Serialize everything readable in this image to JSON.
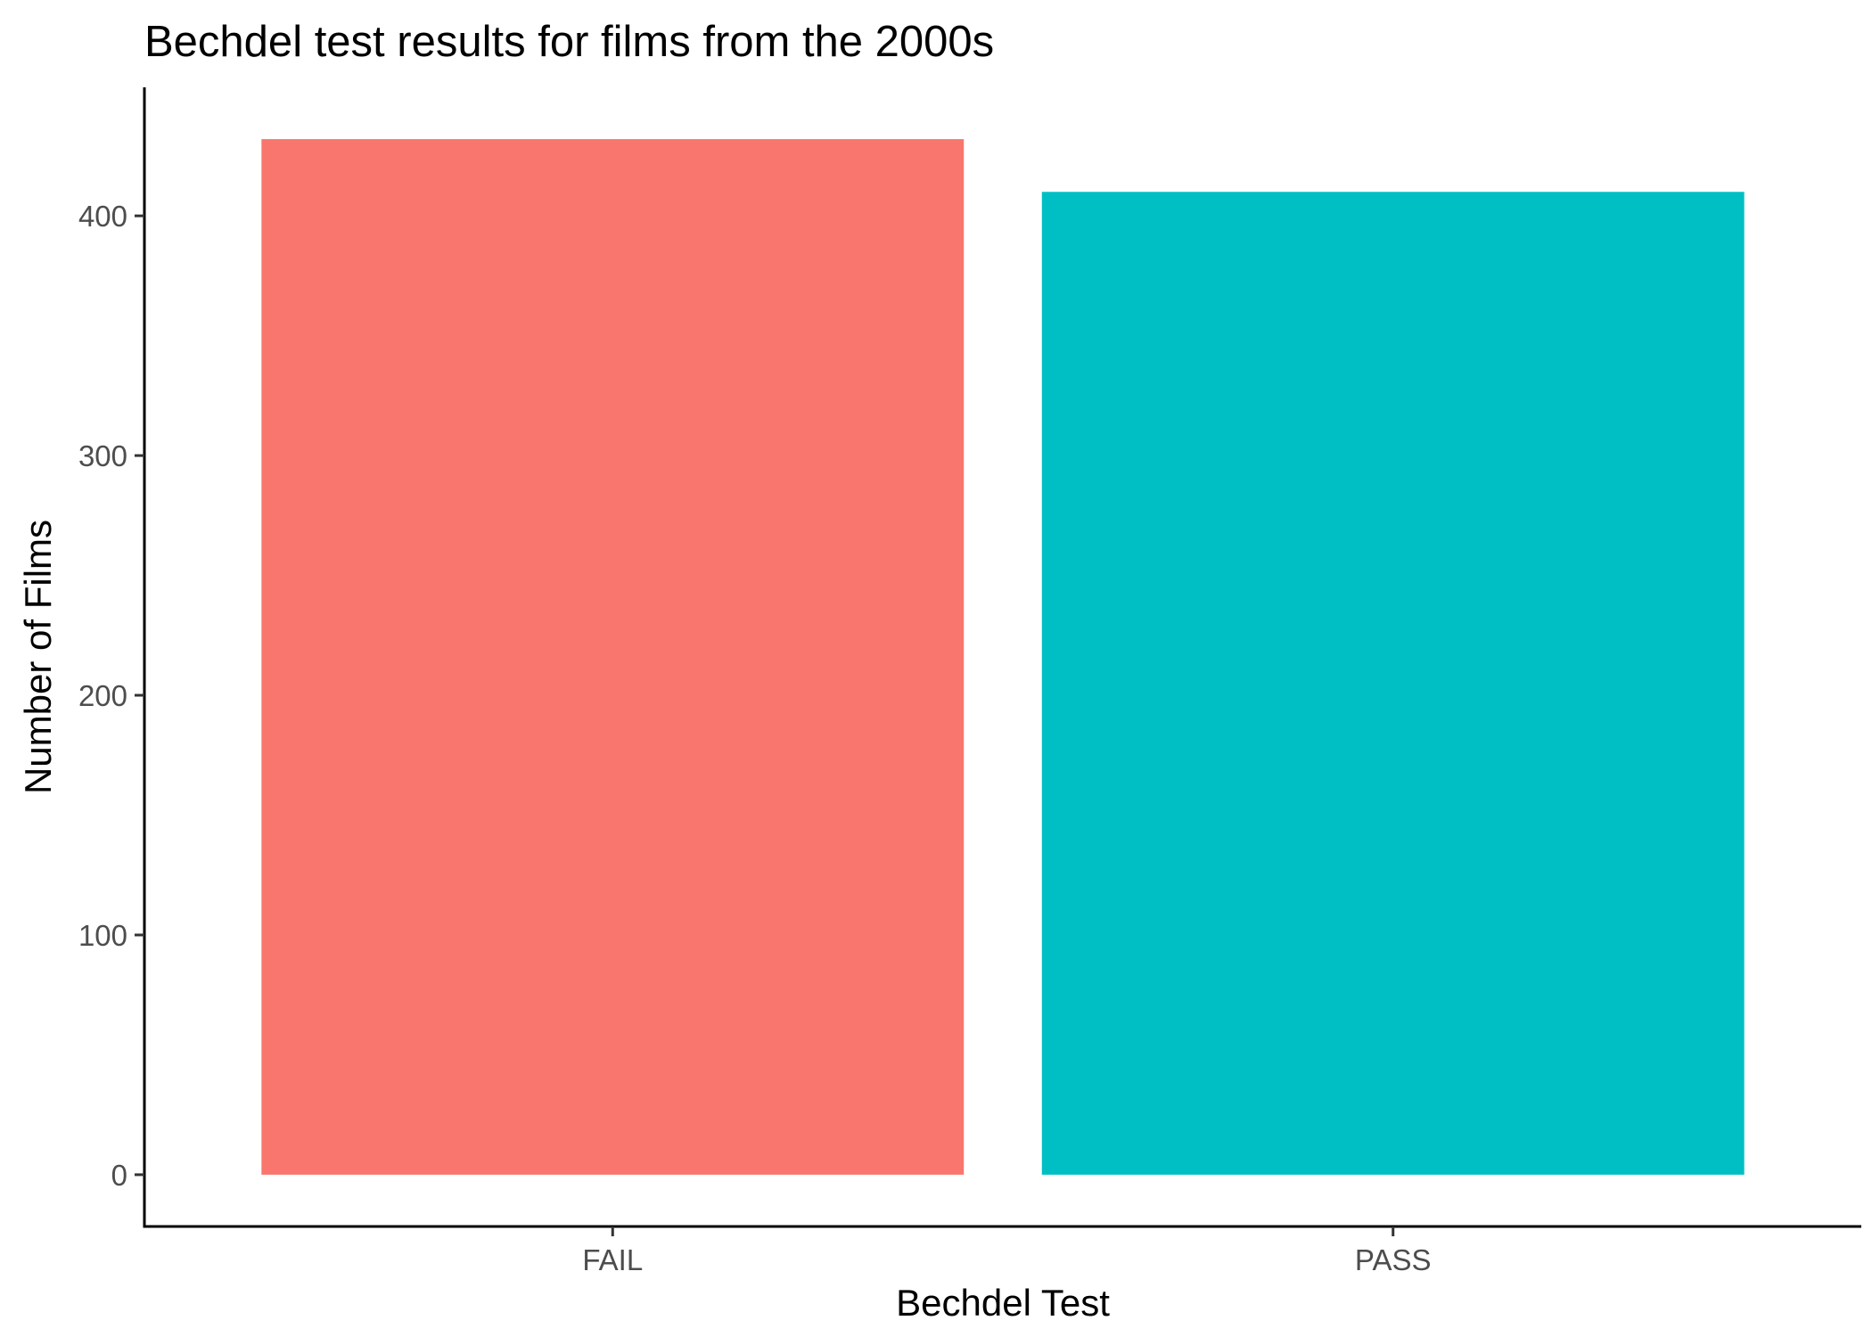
{
  "chart_data": {
    "type": "bar",
    "title": "Bechdel test results for films from the 2000s",
    "xlabel": "Bechdel Test",
    "ylabel": "Number of Films",
    "categories": [
      "FAIL",
      "PASS"
    ],
    "values": [
      432,
      410
    ],
    "colors": [
      "#F8766D",
      "#00BFC4"
    ],
    "ylim": [
      -21.6,
      453.6
    ],
    "yticks": [
      0,
      100,
      200,
      300,
      400
    ],
    "grid": false,
    "legend": "none"
  }
}
